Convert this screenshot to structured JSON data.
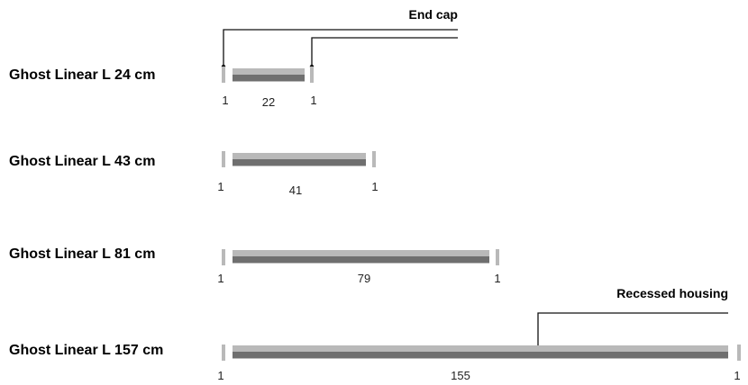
{
  "callouts": {
    "end_cap": "End cap",
    "recessed_housing": "Recessed housing"
  },
  "rows": [
    {
      "label": "Ghost Linear L 24 cm",
      "cap_left": "1",
      "body": "22",
      "cap_right": "1"
    },
    {
      "label": "Ghost Linear L 43 cm",
      "cap_left": "1",
      "body": "41",
      "cap_right": "1"
    },
    {
      "label": "Ghost Linear L 81 cm",
      "cap_left": "1",
      "body": "79",
      "cap_right": "1"
    },
    {
      "label": "Ghost Linear L 157 cm",
      "cap_left": "1",
      "body": "155",
      "cap_right": "1"
    }
  ],
  "colors": {
    "housing_light": "#b9b9b9",
    "housing_dark": "#6f6f6f",
    "end_cap": "#b9b9b9",
    "leader": "#111111"
  }
}
